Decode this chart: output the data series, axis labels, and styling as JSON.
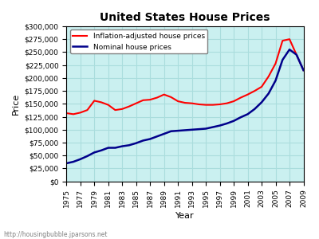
{
  "title": "United States House Prices",
  "xlabel": "Year",
  "ylabel": "Price",
  "background_color": "#caf0f0",
  "grid_color": "#aadddd",
  "watermark": "http://housingbubble.jparsons.net",
  "legend_labels": [
    "Inflation-adjusted house prices",
    "Nominal house prices"
  ],
  "legend_colors": [
    "red",
    "#00008b"
  ],
  "ylim": [
    0,
    300000
  ],
  "yticks": [
    0,
    25000,
    50000,
    75000,
    100000,
    125000,
    150000,
    175000,
    200000,
    225000,
    250000,
    275000,
    300000
  ],
  "xtick_years": [
    1975,
    1977,
    1979,
    1981,
    1983,
    1985,
    1987,
    1989,
    1991,
    1993,
    1995,
    1997,
    1999,
    2001,
    2003,
    2005,
    2007,
    2009
  ],
  "inflation_adjusted": {
    "years": [
      1975,
      1976,
      1977,
      1978,
      1979,
      1980,
      1981,
      1982,
      1983,
      1984,
      1985,
      1986,
      1987,
      1988,
      1989,
      1990,
      1991,
      1992,
      1993,
      1994,
      1995,
      1996,
      1997,
      1998,
      1999,
      2000,
      2001,
      2002,
      2003,
      2004,
      2005,
      2006,
      2007,
      2008,
      2009
    ],
    "values": [
      132000,
      130000,
      133000,
      138000,
      156000,
      153000,
      148000,
      138000,
      140000,
      145000,
      151000,
      157000,
      158000,
      162000,
      168000,
      163000,
      155000,
      152000,
      151000,
      149000,
      148000,
      148000,
      149000,
      151000,
      155000,
      162000,
      168000,
      175000,
      183000,
      203000,
      228000,
      272000,
      275000,
      245000,
      215000
    ]
  },
  "nominal": {
    "years": [
      1975,
      1976,
      1977,
      1978,
      1979,
      1980,
      1981,
      1982,
      1983,
      1984,
      1985,
      1986,
      1987,
      1988,
      1989,
      1990,
      1991,
      1992,
      1993,
      1994,
      1995,
      1996,
      1997,
      1998,
      1999,
      2000,
      2001,
      2002,
      2003,
      2004,
      2005,
      2006,
      2007,
      2008,
      2009
    ],
    "values": [
      35000,
      38000,
      43000,
      49000,
      56000,
      60000,
      65000,
      65000,
      68000,
      70000,
      74000,
      79000,
      82000,
      87000,
      92000,
      97000,
      98000,
      99000,
      100000,
      101000,
      102000,
      105000,
      108000,
      112000,
      117000,
      124000,
      130000,
      140000,
      153000,
      170000,
      195000,
      235000,
      255000,
      245000,
      215000
    ]
  }
}
